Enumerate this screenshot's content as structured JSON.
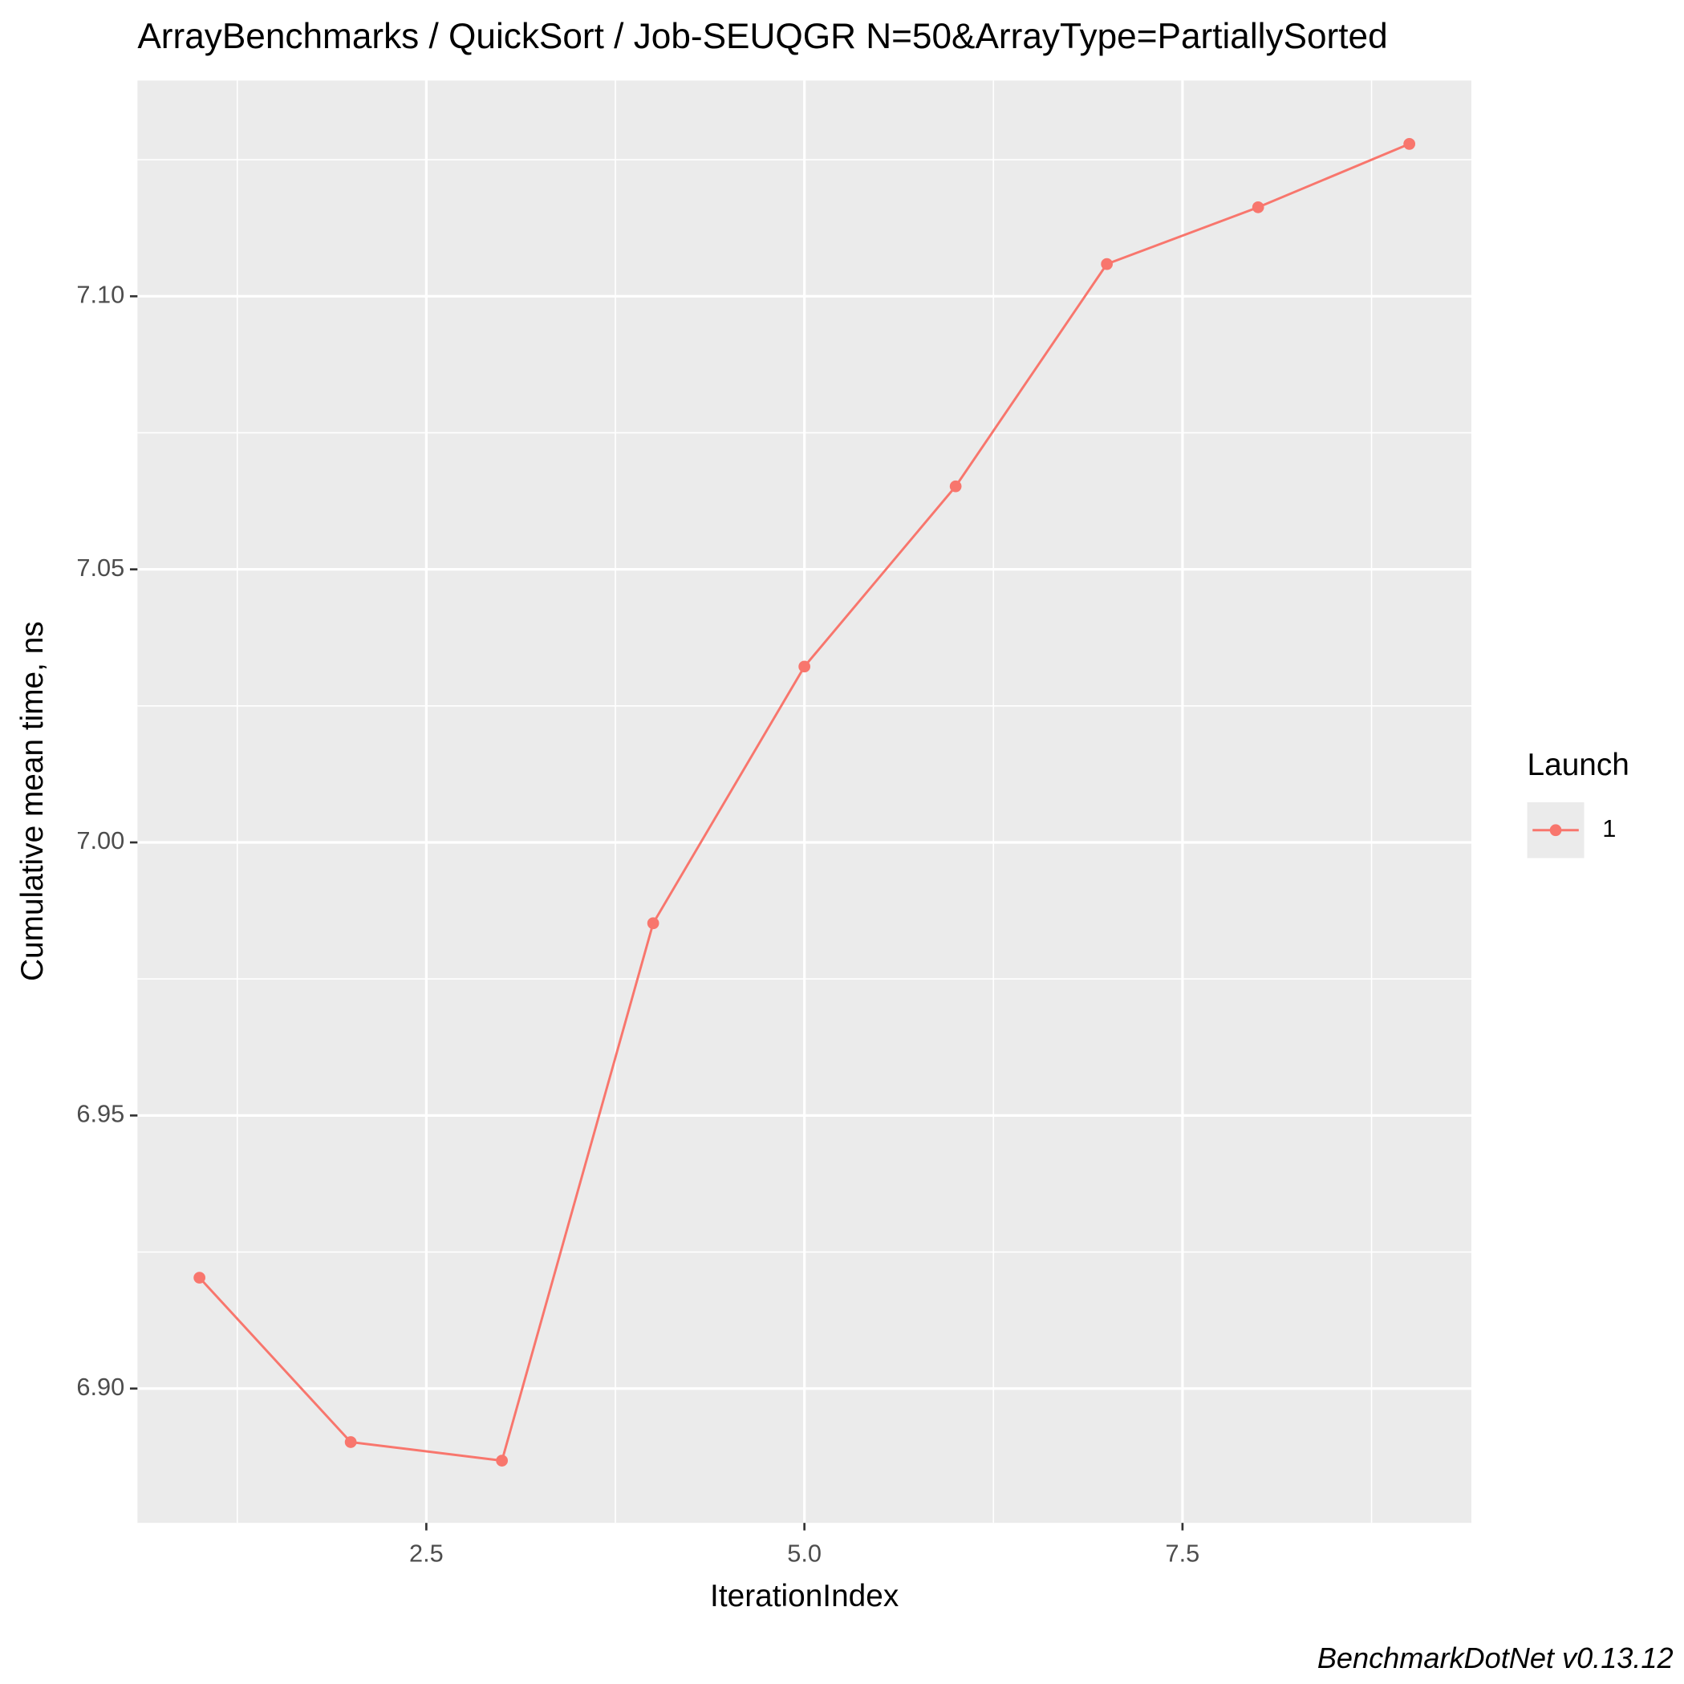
{
  "chart_data": {
    "type": "line",
    "title": "ArrayBenchmarks / QuickSort / Job-SEUQGR N=50&ArrayType=PartiallySorted",
    "x_label": "IterationIndex",
    "y_label": "Cumulative mean time, ns",
    "caption": "BenchmarkDotNet v0.13.12",
    "legend_title": "Launch",
    "legend_position": "right",
    "grid": true,
    "x": [
      1,
      2,
      3,
      4,
      5,
      6,
      7,
      8,
      9
    ],
    "series": [
      {
        "name": "1",
        "color": "#F8766D",
        "values": [
          6.9203,
          6.8902,
          6.8868,
          6.9852,
          7.0322,
          7.0652,
          7.1059,
          7.1163,
          7.1279
        ]
      }
    ],
    "xlim": [
      0.59,
      9.41
    ],
    "xticks": [
      {
        "value": 2.5,
        "label": "2.5"
      },
      {
        "value": 5,
        "label": "5.0"
      },
      {
        "value": 7.5,
        "label": "7.5"
      }
    ],
    "ylim": [
      6.8754,
      7.1395
    ],
    "yticks": [
      {
        "value": 6.9,
        "label": "6.90"
      },
      {
        "value": 6.95,
        "label": "6.95"
      },
      {
        "value": 7,
        "label": "7.00"
      },
      {
        "value": 7.05,
        "label": "7.05"
      },
      {
        "value": 7.1,
        "label": "7.10"
      }
    ]
  }
}
